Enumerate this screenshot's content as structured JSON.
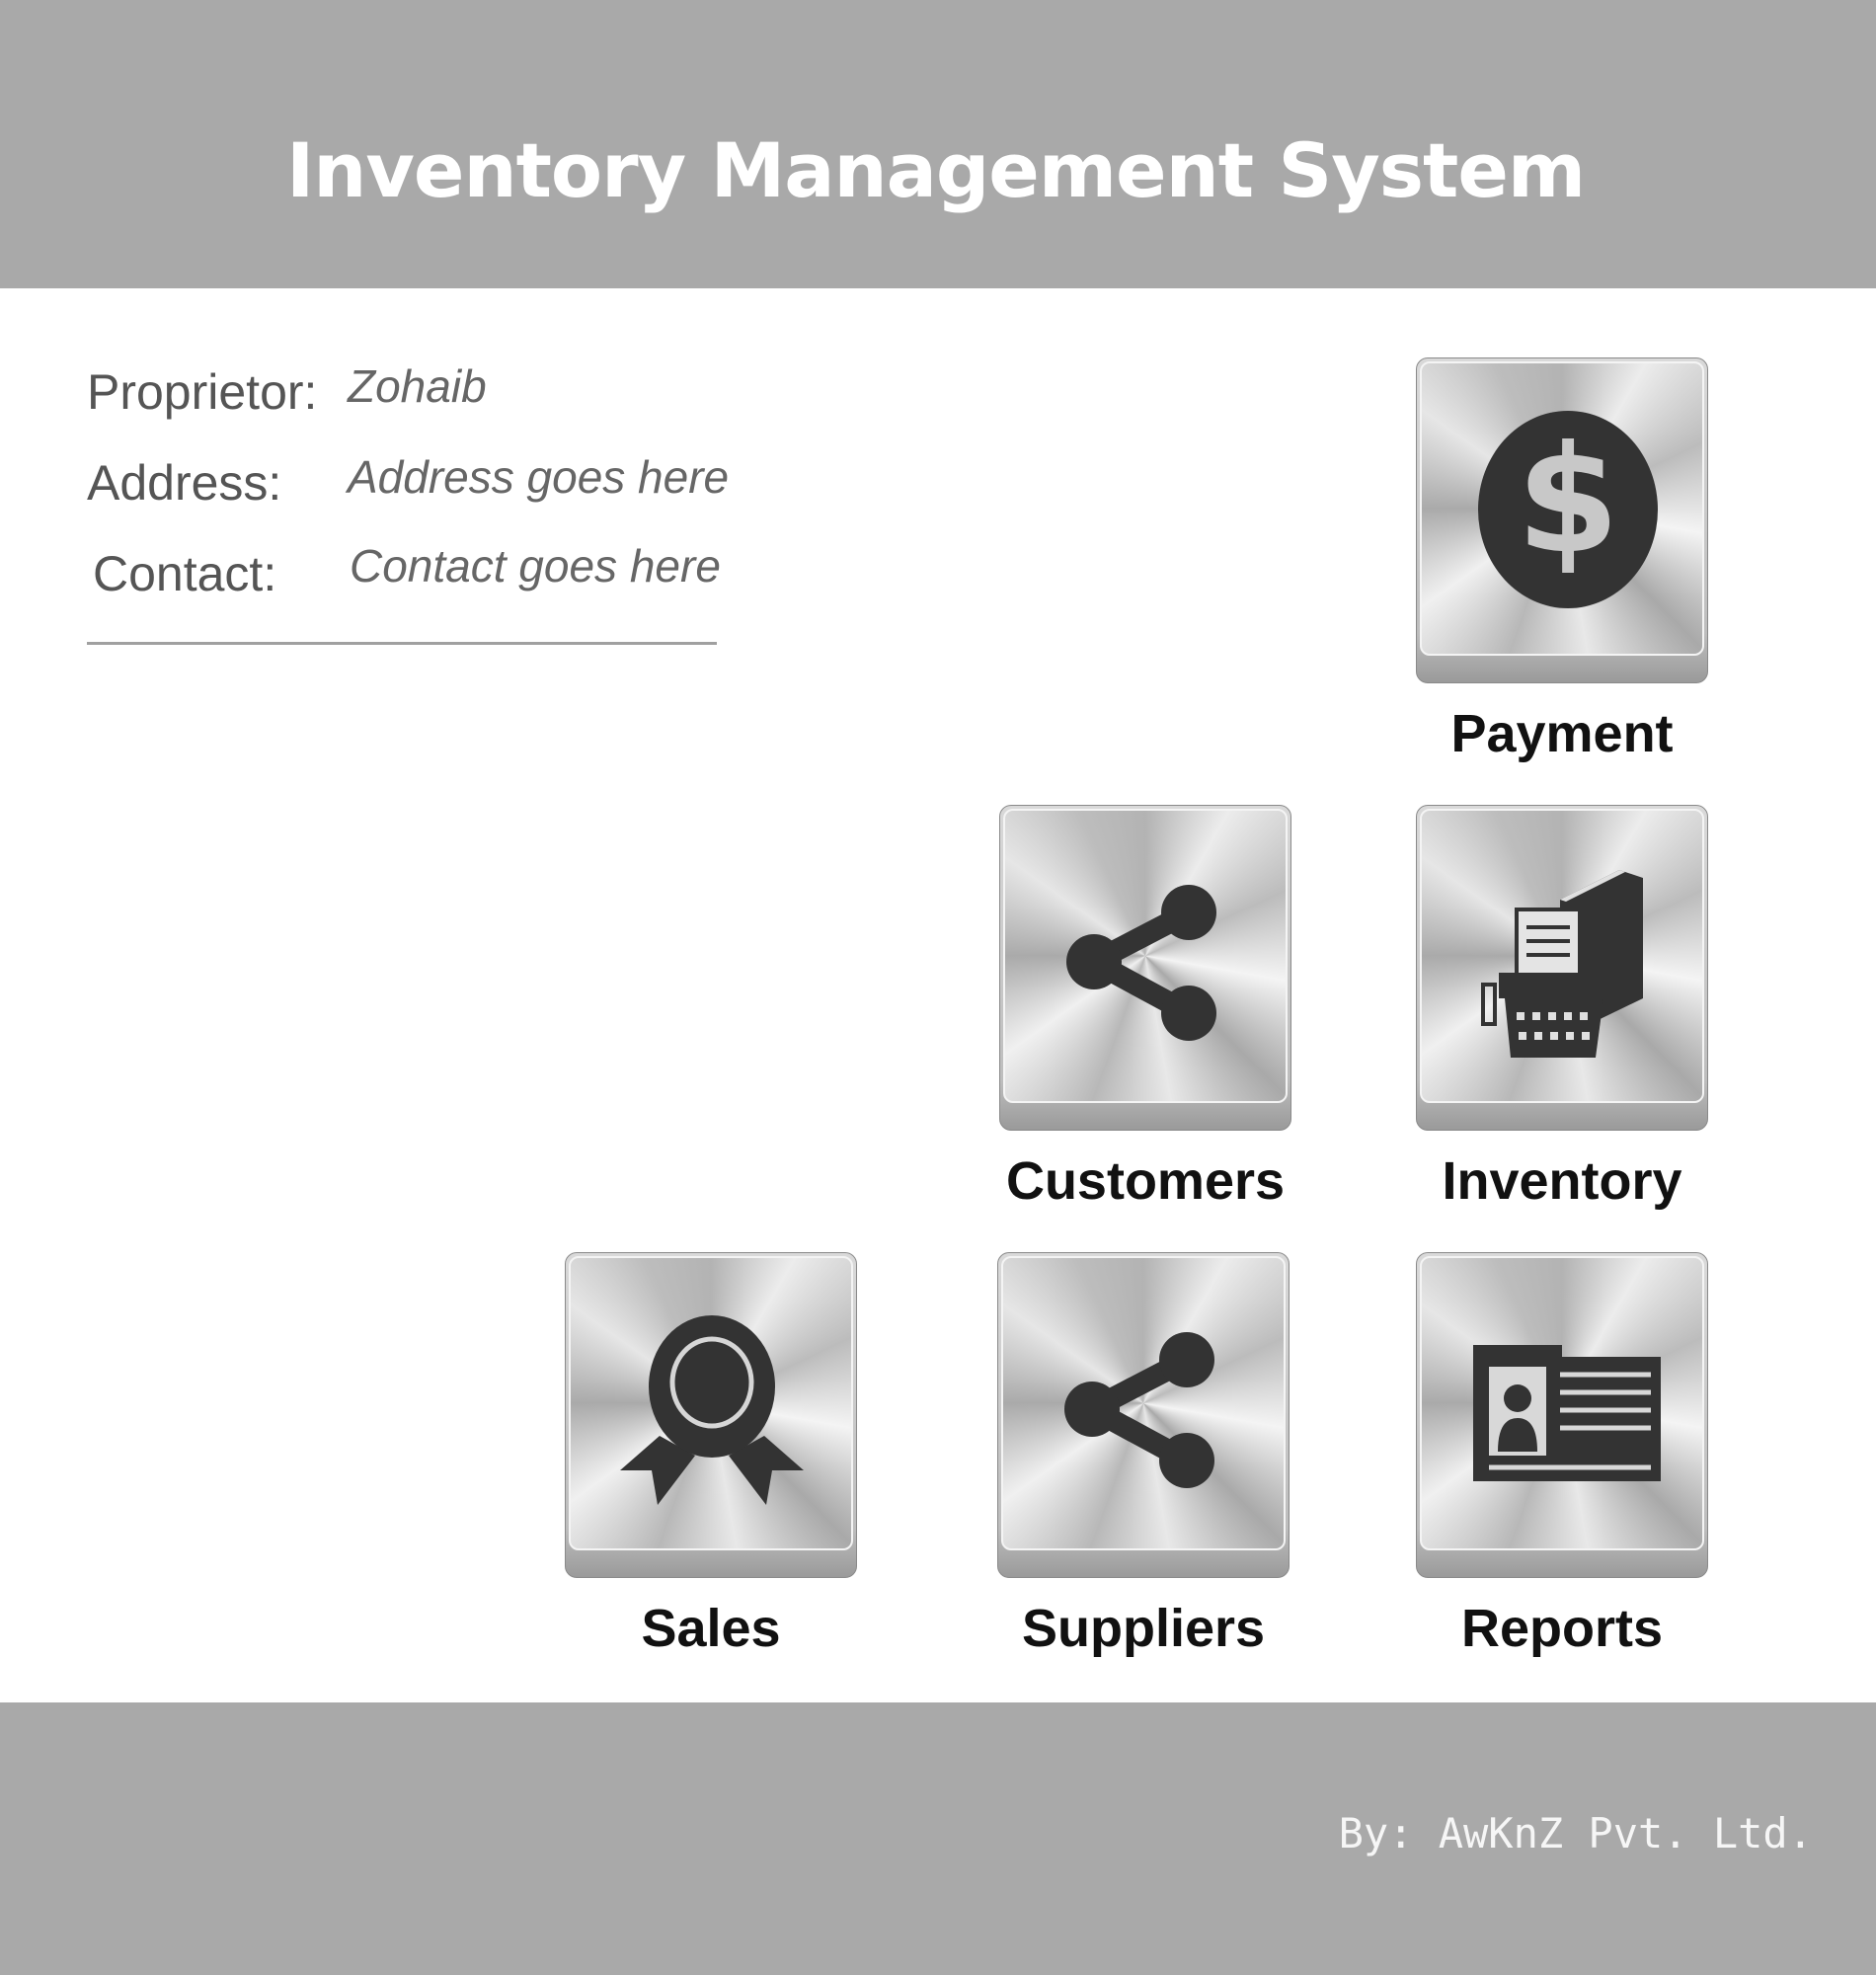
{
  "header": {
    "title": "Inventory Management System"
  },
  "info": {
    "proprietor_label": "Proprietor:",
    "proprietor_value": "Zohaib",
    "address_label": "Address:",
    "address_value": "Address goes here",
    "contact_label": "Contact:",
    "contact_value": "Contact goes here"
  },
  "tiles": {
    "payment": {
      "label": "Payment",
      "icon": "dollar-coin-icon"
    },
    "customers": {
      "label": "Customers",
      "icon": "share-icon"
    },
    "inventory": {
      "label": "Inventory",
      "icon": "typewriter-book-icon"
    },
    "sales": {
      "label": "Sales",
      "icon": "award-ribbon-icon"
    },
    "suppliers": {
      "label": "Suppliers",
      "icon": "share-icon"
    },
    "reports": {
      "label": "Reports",
      "icon": "id-card-icon"
    }
  },
  "footer": {
    "credit": "By: AwKnZ Pvt. Ltd."
  },
  "colors": {
    "bar_background": "#a9a9a9",
    "title_text": "#ffffff",
    "icon_dark": "#333333"
  }
}
